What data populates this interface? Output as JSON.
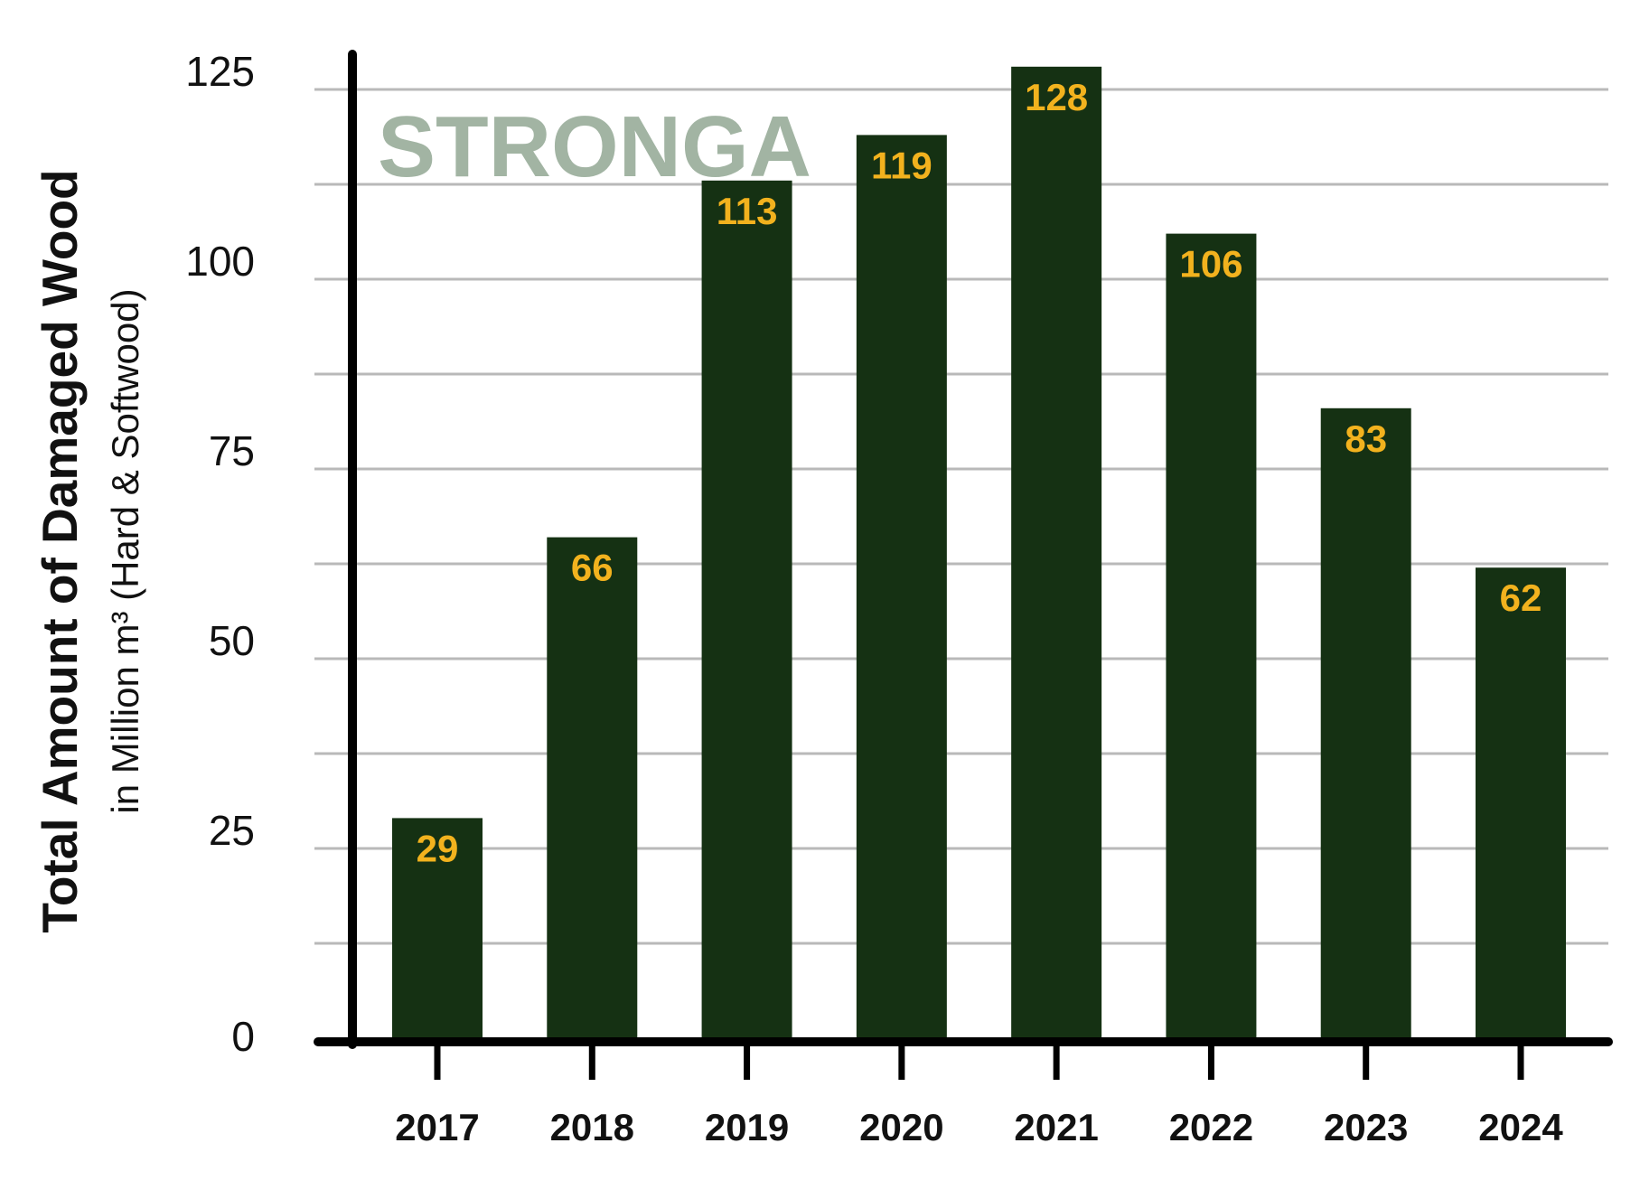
{
  "brand": {
    "text": "STRONGA"
  },
  "colors": {
    "bar": "#153113",
    "label": "#F2B21E",
    "grid": "#b9b9b9",
    "axis": "#000000",
    "brand": "#a2b4a3"
  },
  "chart_data": {
    "type": "bar",
    "categories": [
      "2017",
      "2018",
      "2019",
      "2020",
      "2021",
      "2022",
      "2023",
      "2024"
    ],
    "values": [
      29,
      66,
      113,
      119,
      128,
      106,
      83,
      62
    ],
    "ylabel_main": "Total Amount of Damaged Wood",
    "ylabel_sub": "in Million m³ (Hard & Softwood)",
    "xlabel": "",
    "ylim": [
      0,
      130
    ],
    "yticks": [
      0,
      25,
      50,
      75,
      100,
      125
    ],
    "grid": true
  }
}
